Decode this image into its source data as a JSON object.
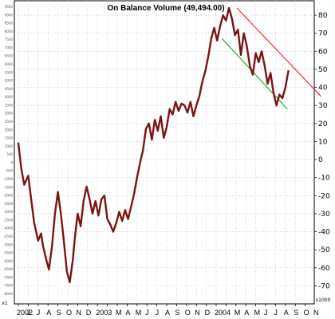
{
  "chart_data": {
    "type": "line",
    "title": "On Balance Volume (49,494.00)",
    "y_right": {
      "ylim": [
        -80,
        88
      ],
      "ticks": [
        80,
        70,
        60,
        50,
        40,
        30,
        20,
        10,
        0,
        -10,
        -20,
        -30,
        -40,
        -50,
        -60,
        -70
      ],
      "unit_label": "x1000"
    },
    "y_left": {
      "ticks": [
        "9500",
        "9000",
        "8500",
        "8000",
        "7500",
        "7000",
        "6500",
        "6000",
        "5500",
        "5000",
        "4500",
        "4000",
        "3500",
        "3000",
        "2500",
        "2000",
        "1500",
        "1000",
        "500",
        "0",
        "-500",
        "-1000",
        "-1500",
        "-2000",
        "-2500",
        "-3000",
        "-3500",
        "-4000",
        "-4500",
        "-5000",
        "-5500",
        "-6000",
        "-6500",
        "-7000",
        "-7500",
        "-8000"
      ],
      "unit_label": "x1"
    },
    "x_labels": [
      "2002",
      "J",
      "J",
      "A",
      "S",
      "O",
      "N",
      "D",
      "2003",
      "M",
      "A",
      "M",
      "J",
      "J",
      "A",
      "S",
      "O",
      "N",
      "D",
      "2004",
      "M",
      "A",
      "M",
      "J",
      "J",
      "A",
      "S",
      "O",
      "N"
    ],
    "x_label_index": [
      0,
      1,
      2,
      3,
      4,
      5,
      6,
      7,
      8,
      10,
      11,
      12,
      13,
      14,
      15,
      16,
      17,
      18,
      19,
      20,
      22,
      23,
      24,
      25,
      26,
      27,
      28,
      29,
      30
    ],
    "grid": true,
    "series": [
      {
        "color": "#7a1414",
        "x": [
          0,
          0.3,
          0.6,
          1.0,
          1.3,
          1.6,
          2.0,
          2.3,
          2.5,
          2.8,
          3.1,
          3.4,
          3.7,
          4.0,
          4.3,
          4.6,
          4.9,
          5.2,
          5.5,
          5.7,
          6.0,
          6.3,
          6.6,
          6.9,
          7.2,
          7.5,
          7.8,
          8.1,
          8.4,
          8.7,
          9.0,
          9.3,
          9.6,
          9.9,
          10.2,
          10.5,
          10.8,
          11.1,
          11.4,
          11.7,
          12.0,
          12.3,
          12.6,
          12.9,
          13.2,
          13.5,
          13.8,
          14.1,
          14.4,
          14.7,
          15.0,
          15.3,
          15.6,
          15.9,
          16.2,
          16.5,
          16.8,
          17.1,
          17.4,
          17.7,
          18.0,
          18.3,
          18.6,
          18.9,
          19.2,
          19.5,
          19.8,
          20.1,
          20.4,
          20.7,
          21.0,
          21.3,
          21.6,
          21.9,
          22.2,
          22.5,
          22.8,
          23.1,
          23.4,
          23.7,
          24.0,
          24.3,
          24.6,
          24.9,
          25.2,
          25.5,
          25.8,
          26.1,
          26.4,
          26.7,
          27.0,
          27.3
        ],
        "y": [
          9,
          -5,
          -14,
          -9,
          -22,
          -35,
          -45,
          -41,
          -48,
          -55,
          -61,
          -48,
          -30,
          -18,
          -30,
          -45,
          -62,
          -68,
          -56,
          -44,
          -30,
          -37,
          -23,
          -15,
          -22,
          -30,
          -23,
          -31,
          -22,
          -20,
          -33,
          -36,
          -40,
          -35,
          -29,
          -34,
          -28,
          -33,
          -26,
          -19,
          -10,
          -2,
          5,
          17,
          20,
          11,
          22,
          16,
          24,
          12,
          18,
          28,
          25,
          32,
          27,
          31,
          30,
          26,
          32,
          24,
          30,
          35,
          43,
          49,
          57,
          67,
          73,
          66,
          74,
          80,
          77,
          84,
          78,
          69,
          72,
          58,
          70,
          63,
          52,
          47,
          59,
          54,
          60,
          52,
          42,
          48,
          37,
          30,
          36,
          34,
          40,
          49
        ]
      }
    ],
    "trendlines": [
      {
        "color": "#ff0000",
        "from": [
          22.1,
          84
        ],
        "to": [
          30.6,
          35
        ]
      },
      {
        "color": "#00a000",
        "from": [
          20.6,
          67
        ],
        "to": [
          27.2,
          28
        ]
      }
    ]
  }
}
